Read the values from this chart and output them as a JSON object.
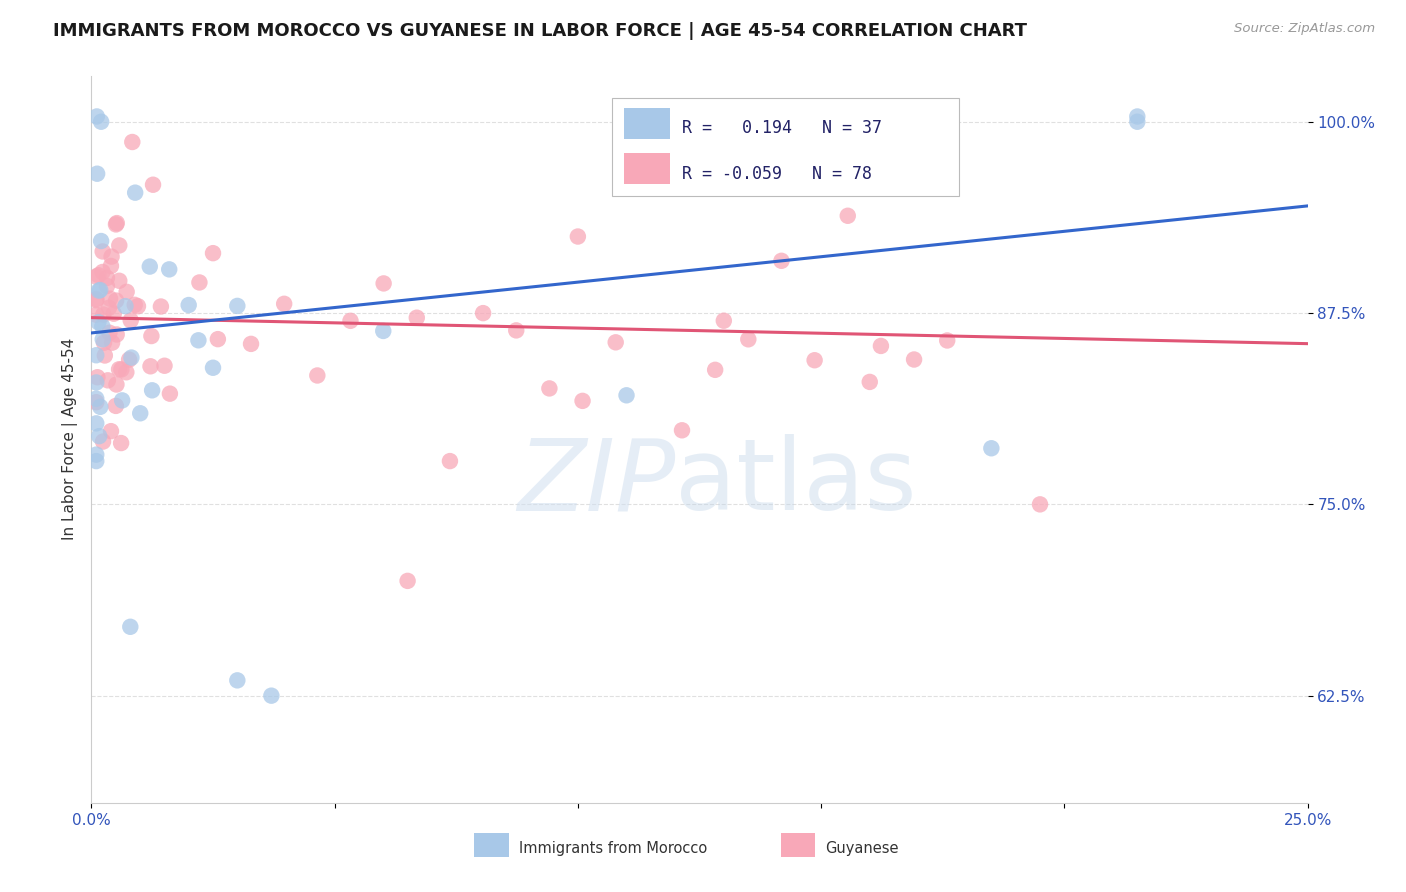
{
  "title": "IMMIGRANTS FROM MOROCCO VS GUYANESE IN LABOR FORCE | AGE 45-54 CORRELATION CHART",
  "source": "Source: ZipAtlas.com",
  "ylabel_label": "In Labor Force | Age 45-54",
  "xlim": [
    0.0,
    0.25
  ],
  "ylim": [
    0.555,
    1.03
  ],
  "xticks": [
    0.0,
    0.05,
    0.1,
    0.15,
    0.2,
    0.25
  ],
  "xticklabels": [
    "0.0%",
    "",
    "",
    "",
    "",
    "25.0%"
  ],
  "yticks": [
    0.625,
    0.75,
    0.875,
    1.0
  ],
  "yticklabels": [
    "62.5%",
    "75.0%",
    "87.5%",
    "100.0%"
  ],
  "morocco_R": 0.194,
  "morocco_N": 37,
  "guyanese_R": -0.059,
  "guyanese_N": 78,
  "morocco_color": "#a8c8e8",
  "guyanese_color": "#f8a8b8",
  "morocco_line_color": "#3366cc",
  "guyanese_line_color": "#e05575",
  "morocco_line_y0": 0.862,
  "morocco_line_y1": 0.945,
  "guyanese_line_y0": 0.872,
  "guyanese_line_y1": 0.855,
  "watermark_color": "#d0dff0",
  "watermark2_color": "#c0d4e8",
  "background_color": "#ffffff",
  "grid_color": "#e0e0e0",
  "title_fontsize": 13,
  "axis_label_fontsize": 11,
  "tick_fontsize": 11,
  "legend_fontsize": 12
}
